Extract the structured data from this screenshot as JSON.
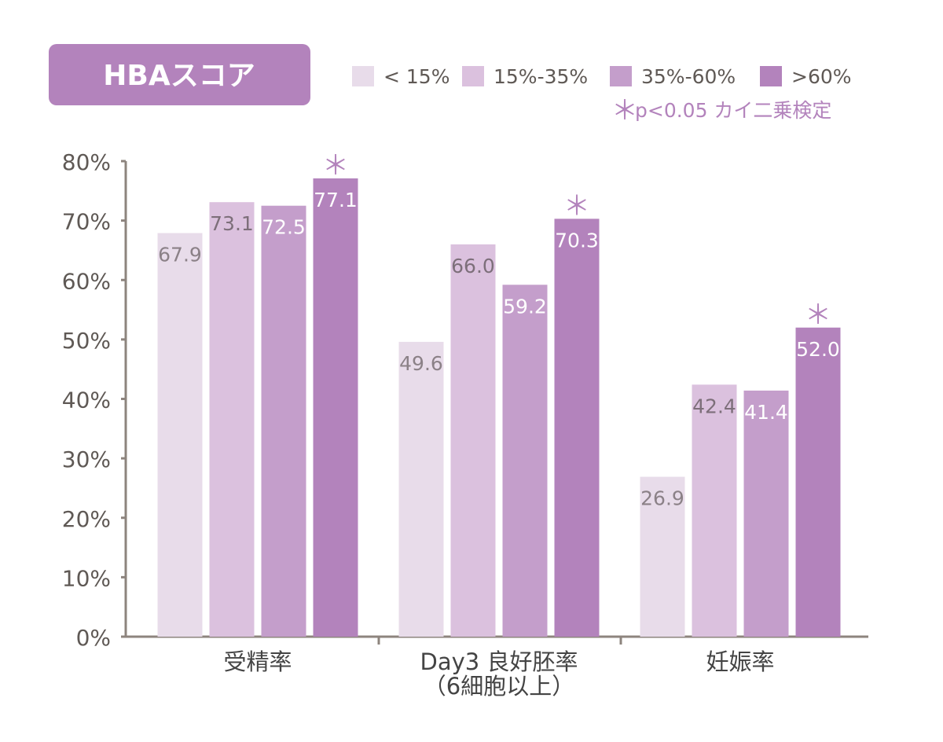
{
  "chart_data": {
    "type": "bar",
    "title": "HBAスコア",
    "xlabel": "",
    "ylabel": "",
    "ylim": [
      0,
      80
    ],
    "yticks": [
      "0%",
      "10%",
      "20%",
      "30%",
      "40%",
      "50%",
      "60%",
      "70%",
      "80%"
    ],
    "categories": [
      {
        "lines": [
          "受精率"
        ]
      },
      {
        "lines": [
          "Day3 良好胚率",
          "（6細胞以上）"
        ]
      },
      {
        "lines": [
          "妊娠率"
        ]
      }
    ],
    "series": [
      {
        "name": "< 15%",
        "color": "#e8dcea",
        "label_color": "#8b8187",
        "values": [
          67.9,
          49.6,
          26.9
        ]
      },
      {
        "name": "15%-35%",
        "color": "#dbc1de",
        "label_color": "#7d6f7a",
        "values": [
          73.1,
          66.0,
          42.4
        ]
      },
      {
        "name": "35%-60%",
        "color": "#c49ecb",
        "label_color": "#ffffff",
        "values": [
          72.5,
          59.2,
          41.4
        ]
      },
      {
        "name": ">60%",
        "color": "#b383bc",
        "label_color": "#ffffff",
        "values": [
          77.1,
          70.3,
          52.0
        ]
      }
    ],
    "value_labels": [
      [
        "67.9",
        "49.6",
        "26.9"
      ],
      [
        "73.1",
        "66.0",
        "42.4"
      ],
      [
        "72.5",
        "59.2",
        "41.4"
      ],
      [
        "77.1",
        "70.3",
        "52.0"
      ]
    ],
    "significance": {
      "series_index": 3,
      "symbol": "＊",
      "note": "p<0.05 カイ二乗検定"
    },
    "legend_position": "top-right",
    "grid": false,
    "colors": {
      "accent": "#b383bc",
      "axis": "#8d847e",
      "tick_text": "#5f5955",
      "title_text": "#ffffff"
    }
  }
}
